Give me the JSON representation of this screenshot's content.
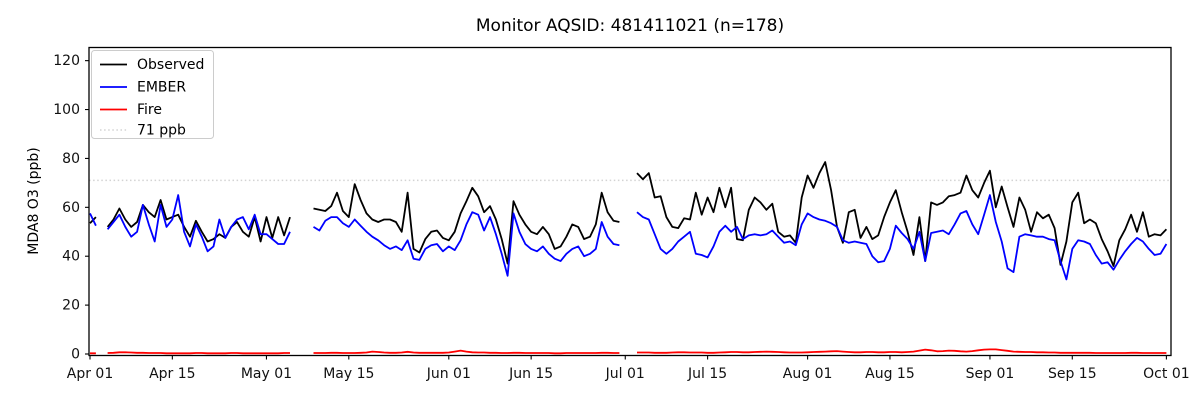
{
  "chart_data": {
    "type": "line",
    "title": "Monitor AQSID: 481411021 (n=178)",
    "ylabel": "MDA8 O3 (ppb)",
    "xlabel": "",
    "ylim": [
      0,
      120
    ],
    "grid": false,
    "legend_position": "upper left",
    "y_ticks": [
      0,
      20,
      40,
      60,
      80,
      100,
      120
    ],
    "x_ticks": [
      {
        "label": "Apr 01",
        "day": 0
      },
      {
        "label": "Apr 15",
        "day": 14
      },
      {
        "label": "May 01",
        "day": 30
      },
      {
        "label": "May 15",
        "day": 44
      },
      {
        "label": "Jun 01",
        "day": 61
      },
      {
        "label": "Jun 15",
        "day": 75
      },
      {
        "label": "Jul 01",
        "day": 91
      },
      {
        "label": "Jul 15",
        "day": 105
      },
      {
        "label": "Aug 01",
        "day": 122
      },
      {
        "label": "Aug 15",
        "day": 136
      },
      {
        "label": "Sep 01",
        "day": 153
      },
      {
        "label": "Sep 15",
        "day": 167
      },
      {
        "label": "Oct 01",
        "day": 183
      }
    ],
    "threshold": {
      "label": "71 ppb",
      "value": 71,
      "color": "#d3d3d3"
    },
    "series": [
      {
        "name": "Observed",
        "color": "#000000",
        "values": [
          53.5,
          56,
          null,
          52,
          55,
          59.5,
          55,
          52,
          54,
          61,
          58,
          56,
          63,
          55,
          56,
          57,
          52,
          48,
          54.5,
          50,
          46,
          47,
          49,
          47.5,
          52,
          54,
          50,
          48,
          56,
          46,
          56,
          47.5,
          56,
          48.5,
          56,
          null,
          null,
          null,
          59.5,
          59,
          58.5,
          60.5,
          66,
          58.5,
          56,
          69.5,
          63,
          57.5,
          55,
          54,
          55,
          55,
          54,
          50,
          66,
          43,
          41.5,
          47,
          50,
          50.5,
          47.5,
          46.5,
          50,
          57.5,
          62.5,
          68,
          64.5,
          58,
          60.5,
          55,
          47,
          37,
          62.5,
          57,
          53,
          50,
          49,
          52,
          49,
          43,
          44,
          48,
          53,
          52,
          47,
          48,
          53,
          66,
          58,
          54.5,
          54,
          null,
          null,
          74,
          71.5,
          74,
          64,
          64.5,
          56,
          52,
          51.5,
          55.5,
          55,
          66,
          57,
          64,
          58,
          68,
          60,
          68,
          47,
          46.5,
          59,
          64,
          62,
          59,
          61.5,
          50,
          48,
          48.5,
          45.5,
          64,
          73,
          68,
          74,
          78.5,
          67,
          52,
          45.5,
          58,
          59,
          47.5,
          52,
          47,
          48.5,
          56,
          62,
          67,
          58,
          50,
          40.5,
          56,
          38,
          62,
          61,
          62,
          64.5,
          65,
          66,
          73,
          67,
          64,
          70,
          75,
          60,
          68.5,
          60,
          52,
          64,
          59,
          50,
          58,
          55.5,
          57,
          51.5,
          36.5,
          46,
          62,
          66,
          53.5,
          55,
          53.5,
          47,
          42,
          36,
          46.5,
          51,
          57,
          50,
          58,
          48,
          49,
          48.5,
          51
        ]
      },
      {
        "name": "EMBER",
        "color": "#0000ff",
        "values": [
          57.5,
          52.5,
          null,
          51,
          54,
          57,
          52,
          48,
          50,
          61,
          53,
          46,
          61,
          52,
          55,
          65,
          50,
          44,
          53,
          48,
          42,
          44,
          55,
          47.5,
          52,
          55,
          56,
          51,
          57,
          49,
          49,
          47,
          45,
          45,
          50,
          null,
          null,
          null,
          52,
          50.5,
          54.5,
          56,
          56,
          53.5,
          52,
          55,
          52.5,
          50,
          48,
          46.5,
          44.5,
          43,
          44,
          42.5,
          46.5,
          39,
          38.5,
          43,
          44.5,
          45,
          42,
          44,
          42.5,
          46.5,
          53,
          58,
          57,
          50.5,
          56,
          49,
          41,
          32,
          57.5,
          50,
          45,
          43,
          42,
          44,
          41,
          39,
          38,
          41,
          43,
          44,
          40,
          41,
          43,
          54,
          48,
          45,
          44.5,
          null,
          null,
          58,
          56,
          55,
          49,
          43,
          41,
          43,
          46,
          48,
          50,
          41,
          40.5,
          39.5,
          44,
          50,
          52.5,
          50,
          52,
          47,
          48.5,
          49,
          48.5,
          49,
          50.5,
          48,
          45.5,
          46,
          44.5,
          53,
          57.5,
          56,
          55,
          54.5,
          53.5,
          52,
          46.5,
          45.5,
          46,
          45.5,
          45,
          40,
          37.5,
          38,
          43,
          52.5,
          49.5,
          47,
          43,
          50,
          38,
          49.5,
          50,
          50.5,
          49,
          53,
          57.5,
          58.5,
          53,
          49,
          57,
          65,
          54,
          46,
          35,
          33.5,
          48,
          49,
          48.5,
          48,
          48,
          47,
          46.5,
          38,
          30.5,
          43,
          46.5,
          46,
          45,
          40.5,
          37,
          37.5,
          34.5,
          38.5,
          42,
          45,
          47.5,
          46,
          43,
          40.5,
          41,
          45
        ]
      },
      {
        "name": "Fire",
        "color": "#ff0000",
        "values": [
          0.3,
          0.3,
          null,
          0.4,
          0.5,
          0.7,
          0.7,
          0.6,
          0.5,
          0.5,
          0.4,
          0.4,
          0.4,
          0.3,
          0.3,
          0.3,
          0.3,
          0.3,
          0.4,
          0.4,
          0.3,
          0.3,
          0.3,
          0.3,
          0.4,
          0.4,
          0.3,
          0.3,
          0.3,
          0.3,
          0.3,
          0.3,
          0.3,
          0.4,
          0.4,
          null,
          null,
          null,
          0.4,
          0.4,
          0.4,
          0.5,
          0.5,
          0.4,
          0.4,
          0.4,
          0.5,
          0.6,
          1.0,
          0.8,
          0.6,
          0.5,
          0.5,
          0.6,
          0.9,
          0.6,
          0.5,
          0.5,
          0.5,
          0.5,
          0.5,
          0.6,
          1.0,
          1.4,
          1.0,
          0.7,
          0.6,
          0.6,
          0.5,
          0.5,
          0.4,
          0.4,
          0.5,
          0.5,
          0.4,
          0.4,
          0.4,
          0.4,
          0.4,
          0.3,
          0.3,
          0.4,
          0.4,
          0.4,
          0.4,
          0.4,
          0.4,
          0.5,
          0.5,
          0.4,
          0.4,
          null,
          null,
          0.6,
          0.6,
          0.6,
          0.5,
          0.5,
          0.5,
          0.6,
          0.7,
          0.7,
          0.6,
          0.6,
          0.6,
          0.5,
          0.5,
          0.6,
          0.7,
          0.8,
          0.8,
          0.7,
          0.7,
          0.8,
          0.9,
          1.0,
          0.9,
          0.8,
          0.7,
          0.6,
          0.6,
          0.6,
          0.7,
          0.8,
          0.9,
          1.0,
          1.1,
          1.2,
          1.0,
          0.8,
          0.7,
          0.7,
          0.8,
          0.8,
          0.7,
          0.7,
          0.8,
          0.8,
          0.7,
          0.8,
          1.0,
          1.4,
          1.8,
          1.5,
          1.1,
          1.2,
          1.4,
          1.3,
          1.1,
          1.0,
          1.2,
          1.5,
          1.8,
          1.9,
          1.9,
          1.6,
          1.3,
          1.0,
          0.9,
          0.8,
          0.8,
          0.7,
          0.7,
          0.6,
          0.6,
          0.5,
          0.5,
          0.5,
          0.5,
          0.5,
          0.5,
          0.4,
          0.4,
          0.4,
          0.4,
          0.4,
          0.4,
          0.5,
          0.5,
          0.4,
          0.4,
          0.4,
          0.4,
          0.4
        ]
      }
    ]
  }
}
